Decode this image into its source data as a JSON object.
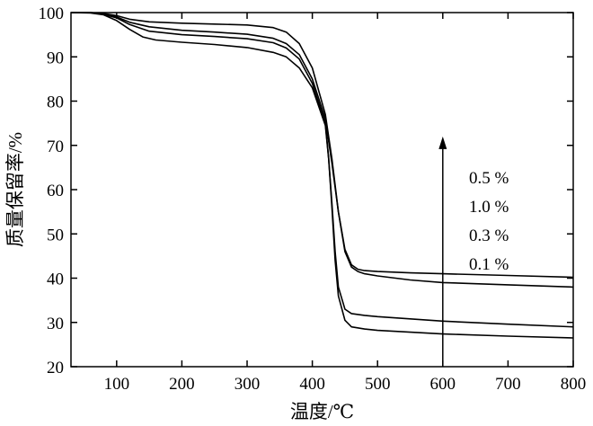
{
  "chart_data": {
    "type": "line",
    "xlabel": "温度/℃",
    "ylabel": "质量保留率/%",
    "xlim": [
      30,
      800
    ],
    "ylim": [
      20,
      100
    ],
    "x_ticks": [
      100,
      200,
      300,
      400,
      500,
      600,
      700,
      800
    ],
    "y_ticks": [
      20,
      30,
      40,
      50,
      60,
      70,
      80,
      90,
      100
    ],
    "grid": false,
    "legend_labels": [
      "0.5 %",
      "1.0 %",
      "0.3 %",
      "0.1 %"
    ],
    "legend_position": "right",
    "arrow": {
      "x": 600,
      "y_from": 20,
      "y_to": 72
    },
    "series": [
      {
        "x": [
          30,
          60,
          80,
          100,
          120,
          150,
          200,
          250,
          300,
          340,
          360,
          380,
          400,
          420,
          430,
          440,
          450,
          460,
          470,
          480,
          500,
          550,
          600,
          700,
          800
        ],
        "y": [
          100,
          100,
          99.8,
          99.3,
          98.5,
          97.9,
          97.6,
          97.4,
          97.2,
          96.6,
          95.6,
          93,
          87.5,
          77,
          67,
          55,
          46.5,
          43,
          42,
          41.7,
          41.5,
          41.2,
          41,
          40.6,
          40.2
        ]
      },
      {
        "x": [
          30,
          60,
          80,
          100,
          120,
          150,
          200,
          250,
          300,
          340,
          360,
          380,
          400,
          420,
          430,
          440,
          450,
          460,
          470,
          480,
          500,
          550,
          600,
          700,
          800
        ],
        "y": [
          100,
          100,
          99.7,
          99,
          97.8,
          96.8,
          96,
          95.6,
          95.1,
          94.2,
          93,
          90.5,
          85,
          76,
          66,
          55,
          46,
          42.5,
          41.5,
          41,
          40.5,
          39.6,
          39,
          38.5,
          38
        ]
      },
      {
        "x": [
          30,
          60,
          80,
          100,
          120,
          150,
          200,
          250,
          300,
          340,
          360,
          380,
          400,
          420,
          425,
          430,
          435,
          440,
          450,
          460,
          480,
          500,
          550,
          600,
          700,
          800
        ],
        "y": [
          100,
          100,
          99.6,
          98.8,
          97.3,
          95.8,
          95,
          94.6,
          94.1,
          93.2,
          92,
          89.5,
          84,
          75,
          67,
          57,
          46,
          38,
          33,
          32,
          31.6,
          31.3,
          30.8,
          30.3,
          29.6,
          29
        ]
      },
      {
        "x": [
          30,
          60,
          80,
          100,
          120,
          140,
          160,
          200,
          250,
          300,
          340,
          360,
          380,
          400,
          420,
          425,
          430,
          435,
          440,
          450,
          460,
          480,
          500,
          550,
          600,
          700,
          800
        ],
        "y": [
          100,
          99.9,
          99.5,
          98.2,
          96.2,
          94.5,
          93.8,
          93.3,
          92.8,
          92.1,
          91,
          90,
          87.5,
          83,
          74.5,
          67,
          56,
          44,
          36,
          30.5,
          29,
          28.5,
          28.2,
          27.8,
          27.4,
          26.9,
          26.5
        ]
      }
    ]
  }
}
